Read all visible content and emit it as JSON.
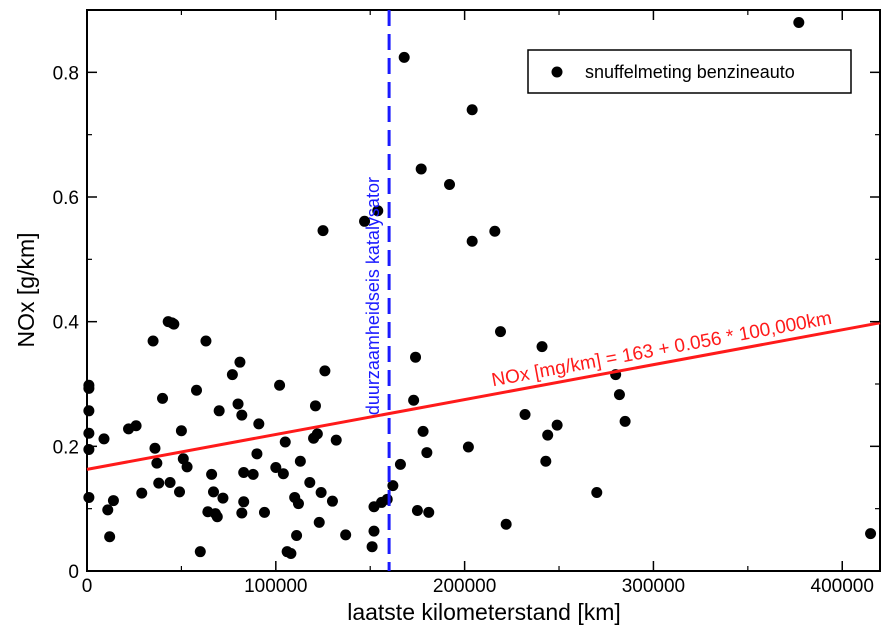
{
  "chart_data": {
    "type": "scatter",
    "xlabel": "laatste kilometerstand [km]",
    "ylabel": "NOx [g/km]",
    "xlim": [
      0,
      420000
    ],
    "ylim": [
      0,
      0.9
    ],
    "x_ticks": [
      0,
      100000,
      200000,
      300000,
      400000
    ],
    "x_tick_labels": [
      "0",
      "100000",
      "200000",
      "300000",
      "400000"
    ],
    "y_ticks": [
      0,
      0.2,
      0.4,
      0.6,
      0.8
    ],
    "y_tick_labels": [
      "0",
      "0.2",
      "0.4",
      "0.6",
      "0.8"
    ],
    "grid": false,
    "legend_position": "top-right",
    "series": [
      {
        "name": "snuffelmeting benzineauto",
        "color": "#000000",
        "marker": "circle",
        "points": [
          [
            1000,
            0.298
          ],
          [
            1000,
            0.293
          ],
          [
            1000,
            0.257
          ],
          [
            1000,
            0.221
          ],
          [
            1000,
            0.195
          ],
          [
            1000,
            0.118
          ],
          [
            9000,
            0.212
          ],
          [
            11000,
            0.098
          ],
          [
            12000,
            0.055
          ],
          [
            14000,
            0.113
          ],
          [
            22000,
            0.228
          ],
          [
            26000,
            0.233
          ],
          [
            29000,
            0.125
          ],
          [
            35000,
            0.369
          ],
          [
            36000,
            0.197
          ],
          [
            37000,
            0.173
          ],
          [
            38000,
            0.141
          ],
          [
            40000,
            0.277
          ],
          [
            43000,
            0.4
          ],
          [
            45000,
            0.398
          ],
          [
            46000,
            0.396
          ],
          [
            44000,
            0.142
          ],
          [
            49000,
            0.127
          ],
          [
            50000,
            0.225
          ],
          [
            51000,
            0.18
          ],
          [
            53000,
            0.167
          ],
          [
            58000,
            0.29
          ],
          [
            60000,
            0.031
          ],
          [
            63000,
            0.369
          ],
          [
            64000,
            0.095
          ],
          [
            66000,
            0.155
          ],
          [
            67000,
            0.127
          ],
          [
            68000,
            0.092
          ],
          [
            69000,
            0.087
          ],
          [
            70000,
            0.257
          ],
          [
            72000,
            0.117
          ],
          [
            77000,
            0.315
          ],
          [
            80000,
            0.268
          ],
          [
            81000,
            0.335
          ],
          [
            82000,
            0.25
          ],
          [
            83000,
            0.158
          ],
          [
            83000,
            0.111
          ],
          [
            82000,
            0.093
          ],
          [
            88000,
            0.155
          ],
          [
            90000,
            0.188
          ],
          [
            91000,
            0.236
          ],
          [
            94000,
            0.094
          ],
          [
            100000,
            0.166
          ],
          [
            102000,
            0.298
          ],
          [
            104000,
            0.156
          ],
          [
            105000,
            0.207
          ],
          [
            106000,
            0.031
          ],
          [
            108000,
            0.028
          ],
          [
            110000,
            0.118
          ],
          [
            111000,
            0.057
          ],
          [
            112000,
            0.108
          ],
          [
            113000,
            0.176
          ],
          [
            118000,
            0.142
          ],
          [
            120000,
            0.213
          ],
          [
            121000,
            0.265
          ],
          [
            122000,
            0.22
          ],
          [
            123000,
            0.078
          ],
          [
            124000,
            0.126
          ],
          [
            125000,
            0.546
          ],
          [
            126000,
            0.321
          ],
          [
            130000,
            0.112
          ],
          [
            132000,
            0.21
          ],
          [
            137000,
            0.058
          ],
          [
            147000,
            0.561
          ],
          [
            151000,
            0.039
          ],
          [
            152000,
            0.064
          ],
          [
            152000,
            0.103
          ],
          [
            154000,
            0.578
          ],
          [
            156000,
            0.11
          ],
          [
            159000,
            0.115
          ],
          [
            162000,
            0.137
          ],
          [
            168000,
            0.824
          ],
          [
            166000,
            0.171
          ],
          [
            173000,
            0.274
          ],
          [
            174000,
            0.343
          ],
          [
            175000,
            0.097
          ],
          [
            177000,
            0.645
          ],
          [
            178000,
            0.224
          ],
          [
            180000,
            0.19
          ],
          [
            181000,
            0.094
          ],
          [
            192000,
            0.62
          ],
          [
            202000,
            0.199
          ],
          [
            204000,
            0.74
          ],
          [
            204000,
            0.529
          ],
          [
            216000,
            0.545
          ],
          [
            219000,
            0.384
          ],
          [
            222000,
            0.075
          ],
          [
            232000,
            0.251
          ],
          [
            241000,
            0.36
          ],
          [
            243000,
            0.176
          ],
          [
            244000,
            0.218
          ],
          [
            249000,
            0.234
          ],
          [
            270000,
            0.126
          ],
          [
            280000,
            0.315
          ],
          [
            282000,
            0.283
          ],
          [
            285000,
            0.24
          ],
          [
            377000,
            0.88
          ],
          [
            415000,
            0.06
          ]
        ]
      }
    ],
    "fit_line": {
      "label": "NOx [mg/km] = 163 + 0.056 * 100,000km",
      "color": "#ff1a1a",
      "intercept": 0.163,
      "slope_per_km": 5.6e-07,
      "x_range": [
        0,
        420000
      ]
    },
    "vertical_line": {
      "x": 160000,
      "label": "duurzaamheidseis  katalysator",
      "color": "#1a1aff",
      "style": "dashed"
    }
  }
}
